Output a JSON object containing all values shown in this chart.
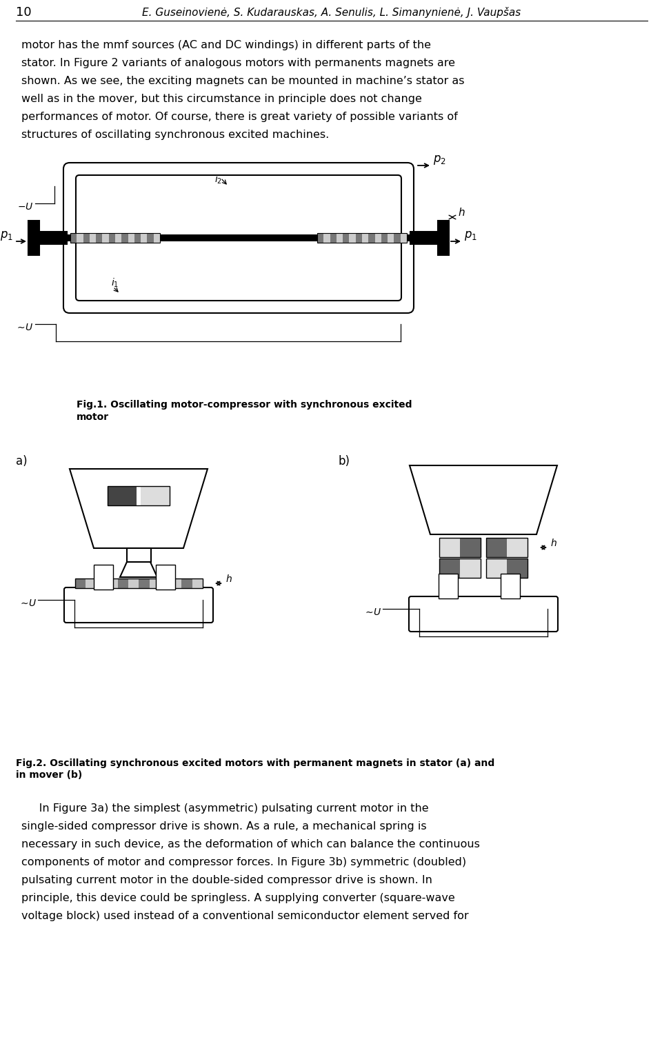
{
  "page_number": "10",
  "header": "E. Guseinovienė, S. Kudarauskas, A. Senulis, L. Simanynienė, J. Vaupšas",
  "para1_lines": [
    "motor has the mmf sources (AC and DC windings) in different parts of the",
    "stator. In Figure 2 variants of analogous motors with permanents magnets are",
    "shown. As we see, the exciting magnets can be mounted in machine’s stator as",
    "well as in the mover, but this circumstance in principle does not change",
    "performances of motor. Of course, there is great variety of possible variants of",
    "structures of oscillating synchronous excited machines."
  ],
  "fig1_caption_line1": "Fig.1. Oscillating motor-compressor with synchronous excited",
  "fig1_caption_line2": "motor",
  "fig2_caption_line1": "Fig.2. Oscillating synchronous excited motors with permanent magnets in stator (a) and",
  "fig2_caption_line2": "in mover (b)",
  "para2_lines": [
    "     In Figure 3a) the simplest (asymmetric) pulsating current motor in the",
    "single-sided compressor drive is shown. As a rule, a mechanical spring is",
    "necessary in such device, as the deformation of which can balance the continuous",
    "components of motor and compressor forces. In Figure 3b) symmetric (doubled)",
    "pulsating current motor in the double-sided compressor drive is shown. In",
    "principle, this device could be springless. A supplying converter (square-wave",
    "voltage block) used instead of a conventional semiconductor element served for"
  ],
  "bg_color": "#ffffff",
  "text_color": "#000000"
}
